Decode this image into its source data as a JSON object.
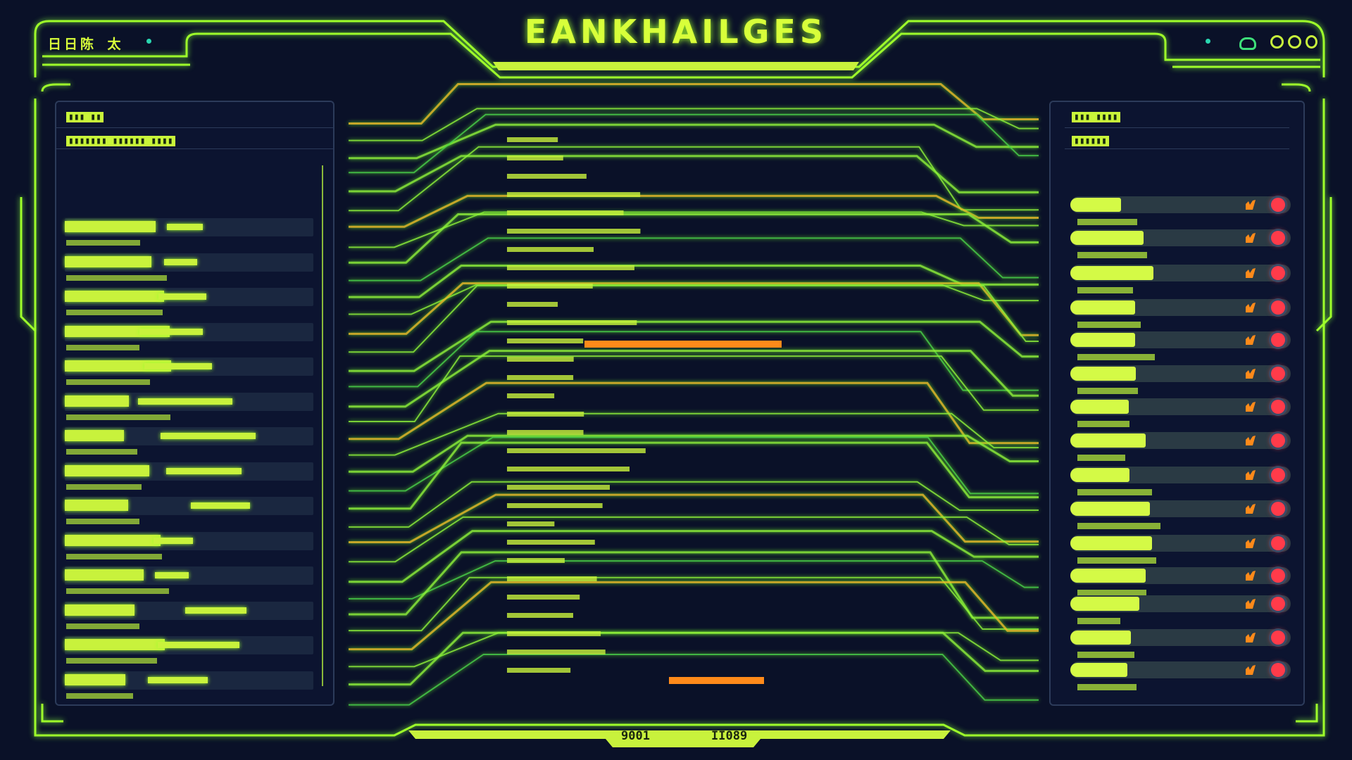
{
  "header": {
    "title": "EANKHAILGES",
    "corner_label": "日日陈 太"
  },
  "window_controls": [
    {
      "icon": "home-icon"
    },
    {
      "icon": "circle-icon"
    },
    {
      "icon": "circle-icon"
    },
    {
      "icon": "circle-icon"
    }
  ],
  "left_panel": {
    "header": "▮▮▮ ▮▮",
    "subheader": "▮▮▮▮▮▮▮ ▮▮▮▮▮▮ ▮▮▮▮"
  },
  "right_panel": {
    "header": "▮▮▮ ▮▮▮▮",
    "subheader": "▮▮▮▮▮▮"
  },
  "footer": {
    "readout_left": "9001",
    "readout_right": "II089"
  },
  "colors": {
    "background": "#0a1128",
    "accent": "#d8ff3a",
    "line": "#7cf23a",
    "warning": "#ff8a1a",
    "alert": "#ff3b4a"
  },
  "right_rows_status": [
    "alert",
    "alert",
    "alert",
    "alert",
    "alert",
    "alert",
    "alert",
    "alert",
    "alert",
    "alert",
    "alert",
    "alert",
    "alert",
    "alert",
    "alert"
  ]
}
